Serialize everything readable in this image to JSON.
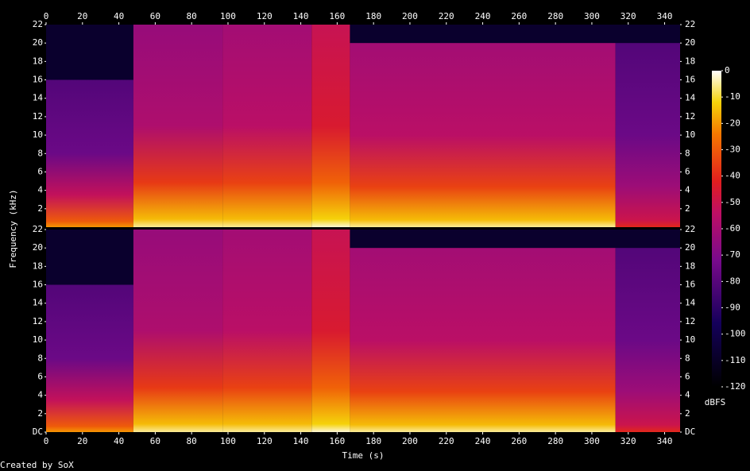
{
  "chart_data": {
    "type": "spectrogram",
    "x_label": "Time (s)",
    "y_label": "Frequency (kHz)",
    "xlim": [
      0,
      348.5
    ],
    "xticks": [
      0,
      20,
      40,
      60,
      80,
      100,
      120,
      140,
      160,
      180,
      200,
      220,
      240,
      260,
      280,
      300,
      320,
      340
    ],
    "ylim": [
      0,
      22
    ],
    "yticks": [
      {
        "value": 0,
        "label": "DC"
      },
      2,
      4,
      6,
      8,
      10,
      12,
      14,
      16,
      18,
      20,
      22
    ],
    "channels": [
      {
        "segments": [
          {
            "start": 0,
            "end": 48,
            "cutoff": 16,
            "low": -30,
            "level": -75
          },
          {
            "start": 48,
            "end": 97,
            "cutoff": 22,
            "low": -15,
            "level": -58
          },
          {
            "start": 97,
            "end": 146,
            "cutoff": 22,
            "low": -15,
            "level": -55
          },
          {
            "start": 146,
            "end": 167,
            "cutoff": 22,
            "low": -12,
            "level": -45
          },
          {
            "start": 167,
            "end": 313,
            "cutoff": 20,
            "low": -15,
            "level": -55
          },
          {
            "start": 313,
            "end": 348.5,
            "cutoff": 20,
            "low": -50,
            "level": -75
          }
        ]
      },
      {
        "segments": [
          {
            "start": 0,
            "end": 48,
            "cutoff": 16,
            "low": -30,
            "level": -75
          },
          {
            "start": 48,
            "end": 97,
            "cutoff": 22,
            "low": -15,
            "level": -58
          },
          {
            "start": 97,
            "end": 146,
            "cutoff": 22,
            "low": -15,
            "level": -55
          },
          {
            "start": 146,
            "end": 167,
            "cutoff": 22,
            "low": -12,
            "level": -45
          },
          {
            "start": 167,
            "end": 313,
            "cutoff": 20,
            "low": -15,
            "level": -55
          },
          {
            "start": 313,
            "end": 348.5,
            "cutoff": 20,
            "low": -50,
            "level": -75
          }
        ]
      }
    ],
    "colorbar": {
      "label": "dBFS",
      "lim": [
        -120,
        0
      ],
      "ticks": [
        0,
        -10,
        -20,
        -30,
        -40,
        -50,
        -60,
        -70,
        -80,
        -90,
        -100,
        -110,
        -120
      ]
    },
    "credit": "Created by SoX"
  }
}
